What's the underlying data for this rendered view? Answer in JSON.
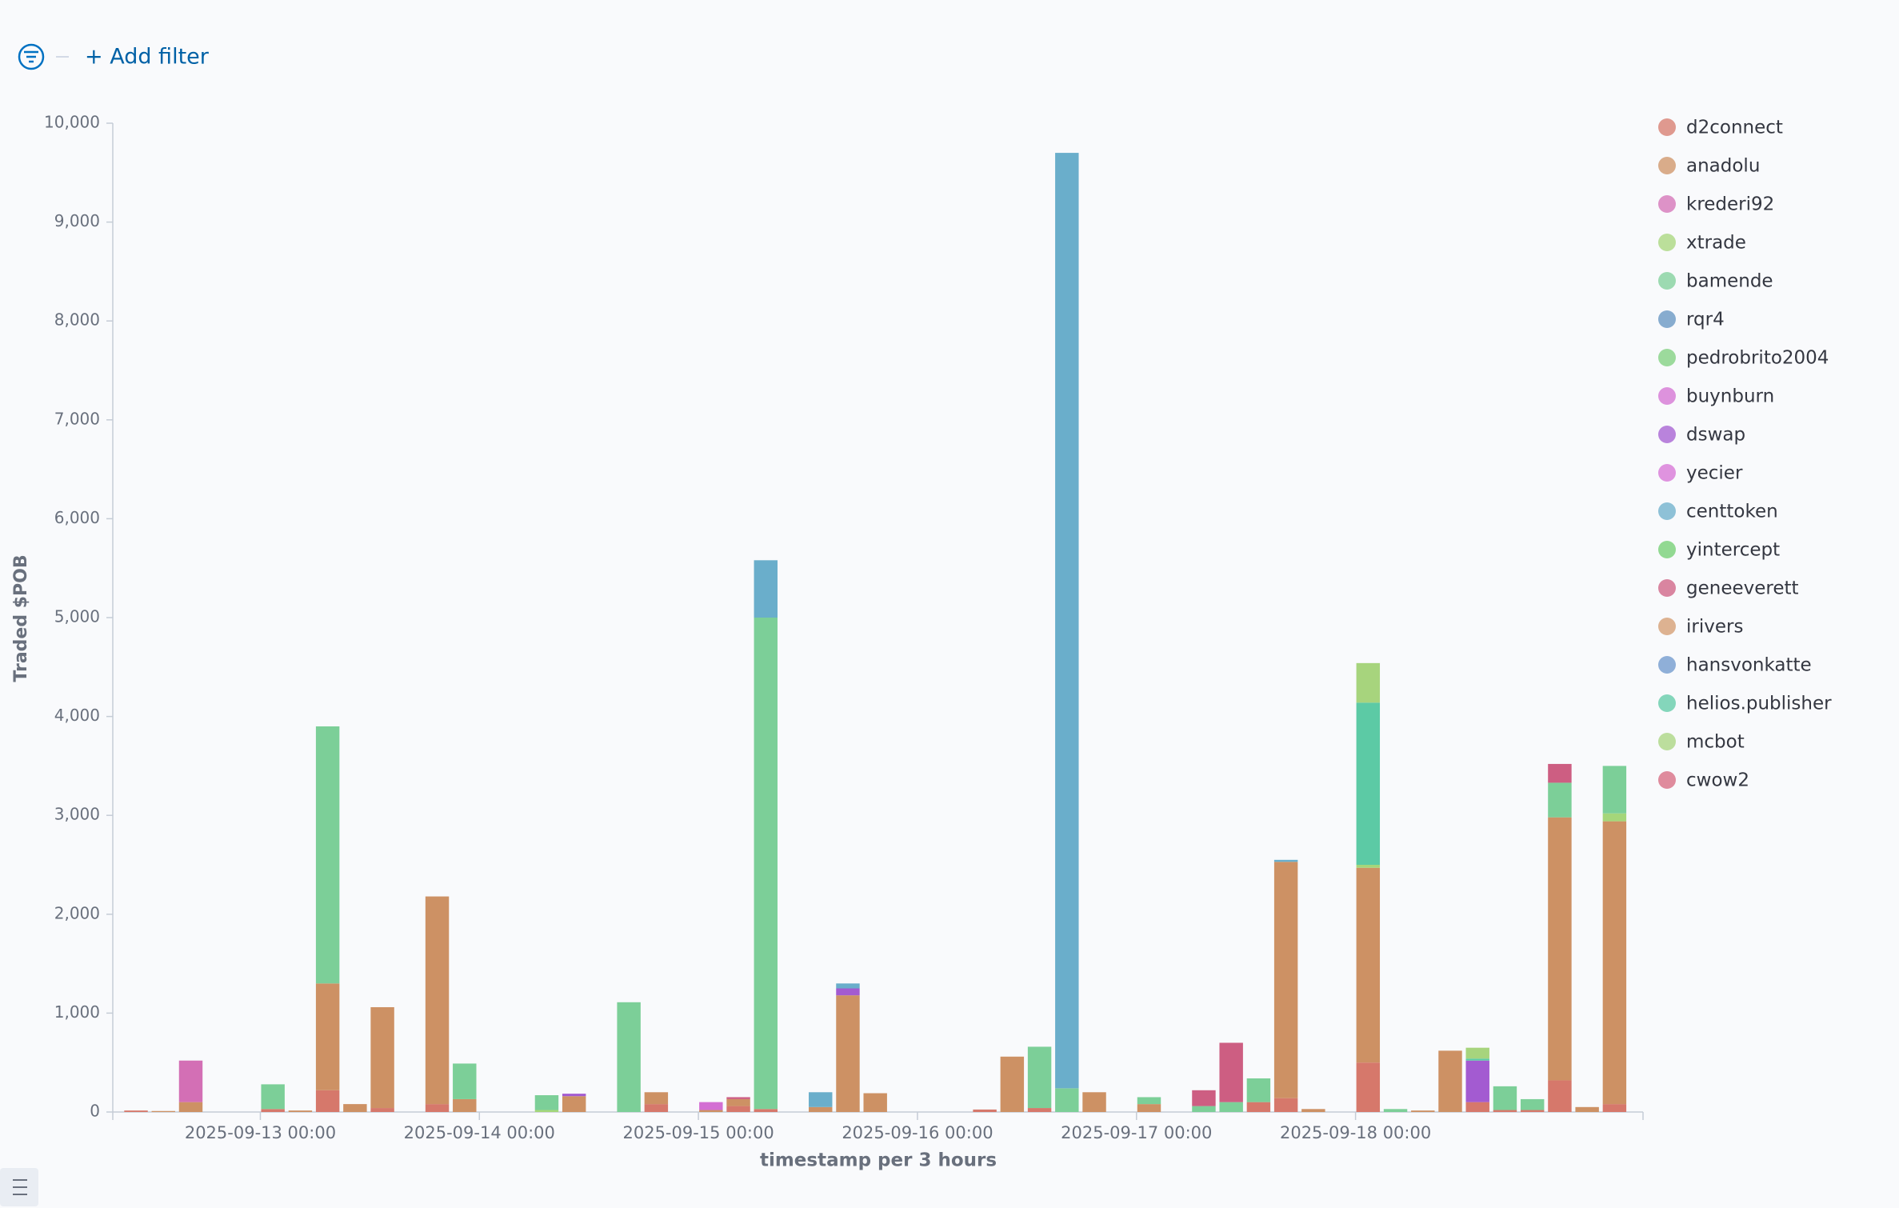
{
  "filter_bar": {
    "add_filter": "+ Add filter"
  },
  "chart_data": {
    "type": "stacked-bar",
    "x_label": "timestamp per 3 hours",
    "y_label": "Traded $POB",
    "x": [
      "2025-09-12 09:00",
      "2025-09-12 12:00",
      "2025-09-12 15:00",
      "2025-09-13 00:00",
      "2025-09-13 03:00",
      "2025-09-13 06:00",
      "2025-09-13 09:00",
      "2025-09-13 12:00",
      "2025-09-13 18:00",
      "2025-09-13 21:00",
      "2025-09-14 06:00",
      "2025-09-14 09:00",
      "2025-09-14 15:00",
      "2025-09-14 18:00",
      "2025-09-15 00:00",
      "2025-09-15 03:00",
      "2025-09-15 06:00",
      "2025-09-15 12:00",
      "2025-09-15 15:00",
      "2025-09-15 18:00",
      "2025-09-16 06:00",
      "2025-09-16 09:00",
      "2025-09-16 12:00",
      "2025-09-16 15:00",
      "2025-09-16 18:00",
      "2025-09-17 00:00",
      "2025-09-17 06:00",
      "2025-09-17 09:00",
      "2025-09-17 12:00",
      "2025-09-17 15:00",
      "2025-09-17 18:00",
      "2025-09-18 00:00",
      "2025-09-18 03:00",
      "2025-09-18 06:00",
      "2025-09-18 09:00",
      "2025-09-18 12:00",
      "2025-09-18 15:00",
      "2025-09-18 18:00",
      "2025-09-18 21:00",
      "2025-09-19 00:00",
      "2025-09-19 03:00"
    ],
    "xlim": [
      "2025-09-12 07:50",
      "2025-09-19 07:30"
    ],
    "xticks": [
      "2025-09-13 00:00",
      "2025-09-14 00:00",
      "2025-09-15 00:00",
      "2025-09-16 00:00",
      "2025-09-17 00:00",
      "2025-09-18 00:00"
    ],
    "ylim": [
      0,
      10000
    ],
    "yticks": [
      0,
      {
        "value": 1000,
        "label": "1,000"
      },
      {
        "value": 2000,
        "label": "2,000"
      },
      {
        "value": 3000,
        "label": "3,000"
      },
      {
        "value": 4000,
        "label": "4,000"
      },
      {
        "value": 5000,
        "label": "5,000"
      },
      {
        "value": 6000,
        "label": "6,000"
      },
      {
        "value": 7000,
        "label": "7,000"
      },
      {
        "value": 8000,
        "label": "8,000"
      },
      {
        "value": 9000,
        "label": "9,000"
      },
      {
        "value": 10000,
        "label": "10,000"
      }
    ],
    "series": [
      {
        "name": "d2connect",
        "color": "#d6786b",
        "values": [
          15,
          null,
          null,
          30,
          null,
          220,
          null,
          40,
          80,
          null,
          null,
          null,
          null,
          80,
          null,
          60,
          30,
          null,
          null,
          null,
          25,
          null,
          40,
          null,
          null,
          null,
          null,
          null,
          100,
          140,
          null,
          500,
          null,
          null,
          null,
          100,
          20,
          20,
          320,
          null,
          80
        ]
      },
      {
        "name": "anadolu",
        "color": "#cd9164",
        "values": [
          null,
          10,
          100,
          null,
          15,
          1080,
          80,
          1020,
          2100,
          130,
          null,
          160,
          null,
          120,
          20,
          70,
          null,
          50,
          1180,
          190,
          null,
          560,
          null,
          null,
          200,
          80,
          null,
          null,
          null,
          2390,
          30,
          1970,
          null,
          15,
          620,
          null,
          null,
          null,
          2660,
          50,
          2860
        ]
      },
      {
        "name": "krederi92",
        "color": "#d36fb5",
        "values": [
          null,
          null,
          420,
          null,
          null,
          null,
          null,
          null,
          null,
          null,
          null,
          null,
          null,
          null,
          null,
          null,
          null,
          null,
          null,
          null,
          null,
          null,
          null,
          null,
          null,
          null,
          null,
          null,
          null,
          null,
          null,
          null,
          null,
          null,
          null,
          null,
          null,
          null,
          null,
          null,
          null
        ]
      },
      {
        "name": "xtrade",
        "color": "#a5d67a",
        "values": [
          null,
          null,
          null,
          null,
          null,
          null,
          null,
          null,
          null,
          null,
          20,
          null,
          null,
          null,
          null,
          null,
          null,
          null,
          null,
          null,
          null,
          null,
          null,
          null,
          null,
          null,
          null,
          null,
          null,
          null,
          null,
          30,
          null,
          null,
          null,
          null,
          null,
          null,
          null,
          null,
          80
        ]
      },
      {
        "name": "bamende",
        "color": "#7ccf98",
        "values": [
          null,
          null,
          null,
          250,
          null,
          2600,
          null,
          null,
          null,
          360,
          150,
          null,
          1110,
          null,
          null,
          null,
          4970,
          null,
          null,
          null,
          null,
          null,
          620,
          240,
          null,
          70,
          60,
          100,
          240,
          null,
          null,
          null,
          30,
          null,
          null,
          null,
          240,
          110,
          350,
          null,
          480
        ]
      },
      {
        "name": "rqr4",
        "color": "#6092c0",
        "values": [
          null,
          null,
          null,
          null,
          null,
          null,
          null,
          null,
          null,
          null,
          null,
          null,
          null,
          null,
          null,
          null,
          null,
          null,
          null,
          null,
          null,
          null,
          null,
          null,
          null,
          null,
          null,
          null,
          null,
          null,
          null,
          null,
          null,
          null,
          null,
          null,
          null,
          null,
          null,
          null,
          null
        ]
      },
      {
        "name": "pedrobrito2004",
        "color": "#7ccf7c",
        "values": [
          null,
          null,
          null,
          null,
          null,
          null,
          null,
          null,
          null,
          null,
          null,
          null,
          null,
          null,
          null,
          null,
          null,
          null,
          null,
          null,
          null,
          null,
          null,
          null,
          null,
          null,
          null,
          null,
          null,
          null,
          null,
          null,
          null,
          null,
          null,
          null,
          null,
          null,
          null,
          null,
          null
        ]
      },
      {
        "name": "buynburn",
        "color": "#d36fd3",
        "values": [
          null,
          null,
          null,
          null,
          null,
          null,
          null,
          null,
          null,
          null,
          null,
          null,
          null,
          null,
          80,
          null,
          null,
          null,
          null,
          null,
          null,
          null,
          null,
          null,
          null,
          null,
          null,
          null,
          null,
          null,
          null,
          null,
          null,
          null,
          null,
          null,
          null,
          null,
          null,
          null,
          null
        ]
      },
      {
        "name": "dswap",
        "color": "#a35bd1",
        "values": [
          null,
          null,
          null,
          null,
          null,
          null,
          null,
          null,
          null,
          null,
          null,
          25,
          null,
          null,
          null,
          null,
          null,
          null,
          70,
          null,
          null,
          null,
          null,
          null,
          null,
          null,
          null,
          null,
          null,
          null,
          null,
          null,
          null,
          null,
          null,
          420,
          null,
          null,
          null,
          null,
          null
        ]
      },
      {
        "name": "yecier",
        "color": "#d670d6",
        "values": [
          null,
          null,
          null,
          null,
          null,
          null,
          null,
          null,
          null,
          null,
          null,
          null,
          null,
          null,
          null,
          null,
          null,
          null,
          null,
          null,
          null,
          null,
          null,
          null,
          null,
          null,
          null,
          null,
          null,
          null,
          null,
          null,
          null,
          null,
          null,
          null,
          null,
          null,
          null,
          null,
          null
        ]
      },
      {
        "name": "centtoken",
        "color": "#6aaecb",
        "values": [
          null,
          null,
          null,
          null,
          null,
          null,
          null,
          null,
          null,
          null,
          null,
          null,
          null,
          null,
          null,
          null,
          580,
          150,
          50,
          null,
          null,
          null,
          null,
          9460,
          null,
          null,
          null,
          null,
          null,
          20,
          null,
          null,
          null,
          null,
          null,
          null,
          null,
          null,
          null,
          null,
          null
        ]
      },
      {
        "name": "yintercept",
        "color": "#6fcd6f",
        "values": [
          null,
          null,
          null,
          null,
          null,
          null,
          null,
          null,
          null,
          null,
          null,
          null,
          null,
          null,
          null,
          null,
          null,
          null,
          null,
          null,
          null,
          null,
          null,
          null,
          null,
          null,
          null,
          null,
          null,
          null,
          null,
          null,
          null,
          null,
          null,
          null,
          null,
          null,
          null,
          null,
          null
        ]
      },
      {
        "name": "geneeverett",
        "color": "#cd5e82",
        "values": [
          null,
          null,
          null,
          null,
          null,
          null,
          null,
          null,
          null,
          null,
          null,
          null,
          null,
          null,
          null,
          20,
          null,
          null,
          null,
          null,
          null,
          null,
          null,
          null,
          null,
          null,
          160,
          600,
          null,
          null,
          null,
          null,
          null,
          null,
          null,
          null,
          null,
          null,
          190,
          null,
          null
        ]
      },
      {
        "name": "irivers",
        "color": "#d39a6d",
        "values": [
          null,
          null,
          null,
          null,
          null,
          null,
          null,
          null,
          null,
          null,
          null,
          null,
          null,
          null,
          null,
          null,
          null,
          null,
          null,
          null,
          null,
          null,
          null,
          null,
          null,
          null,
          null,
          null,
          null,
          null,
          null,
          null,
          null,
          null,
          null,
          null,
          null,
          null,
          null,
          null,
          null
        ]
      },
      {
        "name": "hansvonkatte",
        "color": "#6b95cc",
        "values": [
          null,
          null,
          null,
          null,
          null,
          null,
          null,
          null,
          null,
          null,
          null,
          null,
          null,
          null,
          null,
          null,
          null,
          null,
          null,
          null,
          null,
          null,
          null,
          null,
          null,
          null,
          null,
          null,
          null,
          null,
          null,
          null,
          null,
          null,
          null,
          null,
          null,
          null,
          null,
          null,
          null
        ]
      },
      {
        "name": "helios.publisher",
        "color": "#5ccaa5",
        "values": [
          null,
          null,
          null,
          null,
          null,
          null,
          null,
          null,
          null,
          null,
          null,
          null,
          null,
          null,
          null,
          null,
          null,
          null,
          null,
          null,
          null,
          null,
          null,
          null,
          null,
          null,
          null,
          null,
          null,
          null,
          null,
          1640,
          null,
          null,
          null,
          20,
          null,
          null,
          null,
          null,
          null
        ]
      },
      {
        "name": "mcbot",
        "color": "#a7d47d",
        "values": [
          null,
          null,
          null,
          null,
          null,
          null,
          null,
          null,
          null,
          null,
          null,
          null,
          null,
          null,
          null,
          null,
          null,
          null,
          null,
          null,
          null,
          null,
          null,
          null,
          null,
          null,
          null,
          null,
          null,
          null,
          null,
          400,
          null,
          null,
          null,
          110,
          null,
          null,
          null,
          null,
          null
        ]
      },
      {
        "name": "cwow2",
        "color": "#d5667e",
        "values": [
          null,
          null,
          null,
          null,
          null,
          null,
          null,
          null,
          null,
          null,
          null,
          null,
          null,
          null,
          null,
          null,
          null,
          null,
          null,
          null,
          null,
          null,
          null,
          null,
          null,
          null,
          null,
          null,
          null,
          null,
          null,
          null,
          null,
          null,
          null,
          null,
          null,
          null,
          null,
          null,
          null
        ]
      }
    ]
  }
}
